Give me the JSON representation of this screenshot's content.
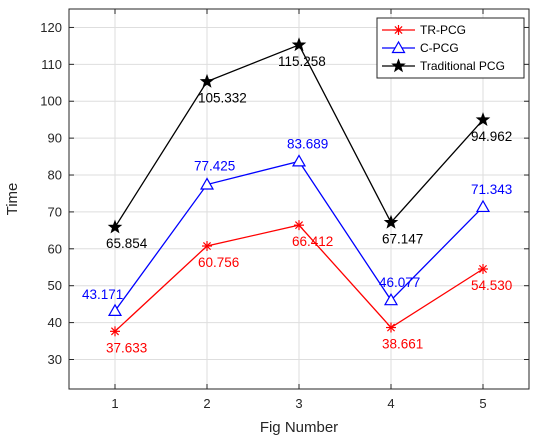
{
  "chart_data": {
    "type": "line",
    "xlabel": "Fig Number",
    "ylabel": "Time",
    "x": [
      1,
      2,
      3,
      4,
      5
    ],
    "xlim": [
      0.5,
      5.5
    ],
    "ylim": [
      22,
      125
    ],
    "xticks": [
      "1",
      "2",
      "3",
      "4",
      "5"
    ],
    "yticks": [
      "30",
      "40",
      "50",
      "60",
      "70",
      "80",
      "90",
      "100",
      "110",
      "120"
    ],
    "grid": true,
    "legend_position": "top-right",
    "series": [
      {
        "name": "TR-PCG",
        "color": "#ff0000",
        "marker": "asterisk",
        "values": [
          37.633,
          60.756,
          66.412,
          38.661,
          54.53
        ],
        "labels": [
          "37.633",
          "60.756",
          "66.412",
          "38.661",
          "54.530"
        ]
      },
      {
        "name": "C-PCG",
        "color": "#0000ff",
        "marker": "triangle",
        "values": [
          43.171,
          77.425,
          83.689,
          46.077,
          71.343
        ],
        "labels": [
          "43.171",
          "77.425",
          "83.689",
          "46.077",
          "71.343"
        ]
      },
      {
        "name": "Traditional PCG",
        "color": "#000000",
        "marker": "star",
        "values": [
          65.854,
          105.332,
          115.258,
          67.147,
          94.962
        ],
        "labels": [
          "65.854",
          "105.332",
          "115.258",
          "67.147",
          "94.962"
        ]
      }
    ]
  }
}
